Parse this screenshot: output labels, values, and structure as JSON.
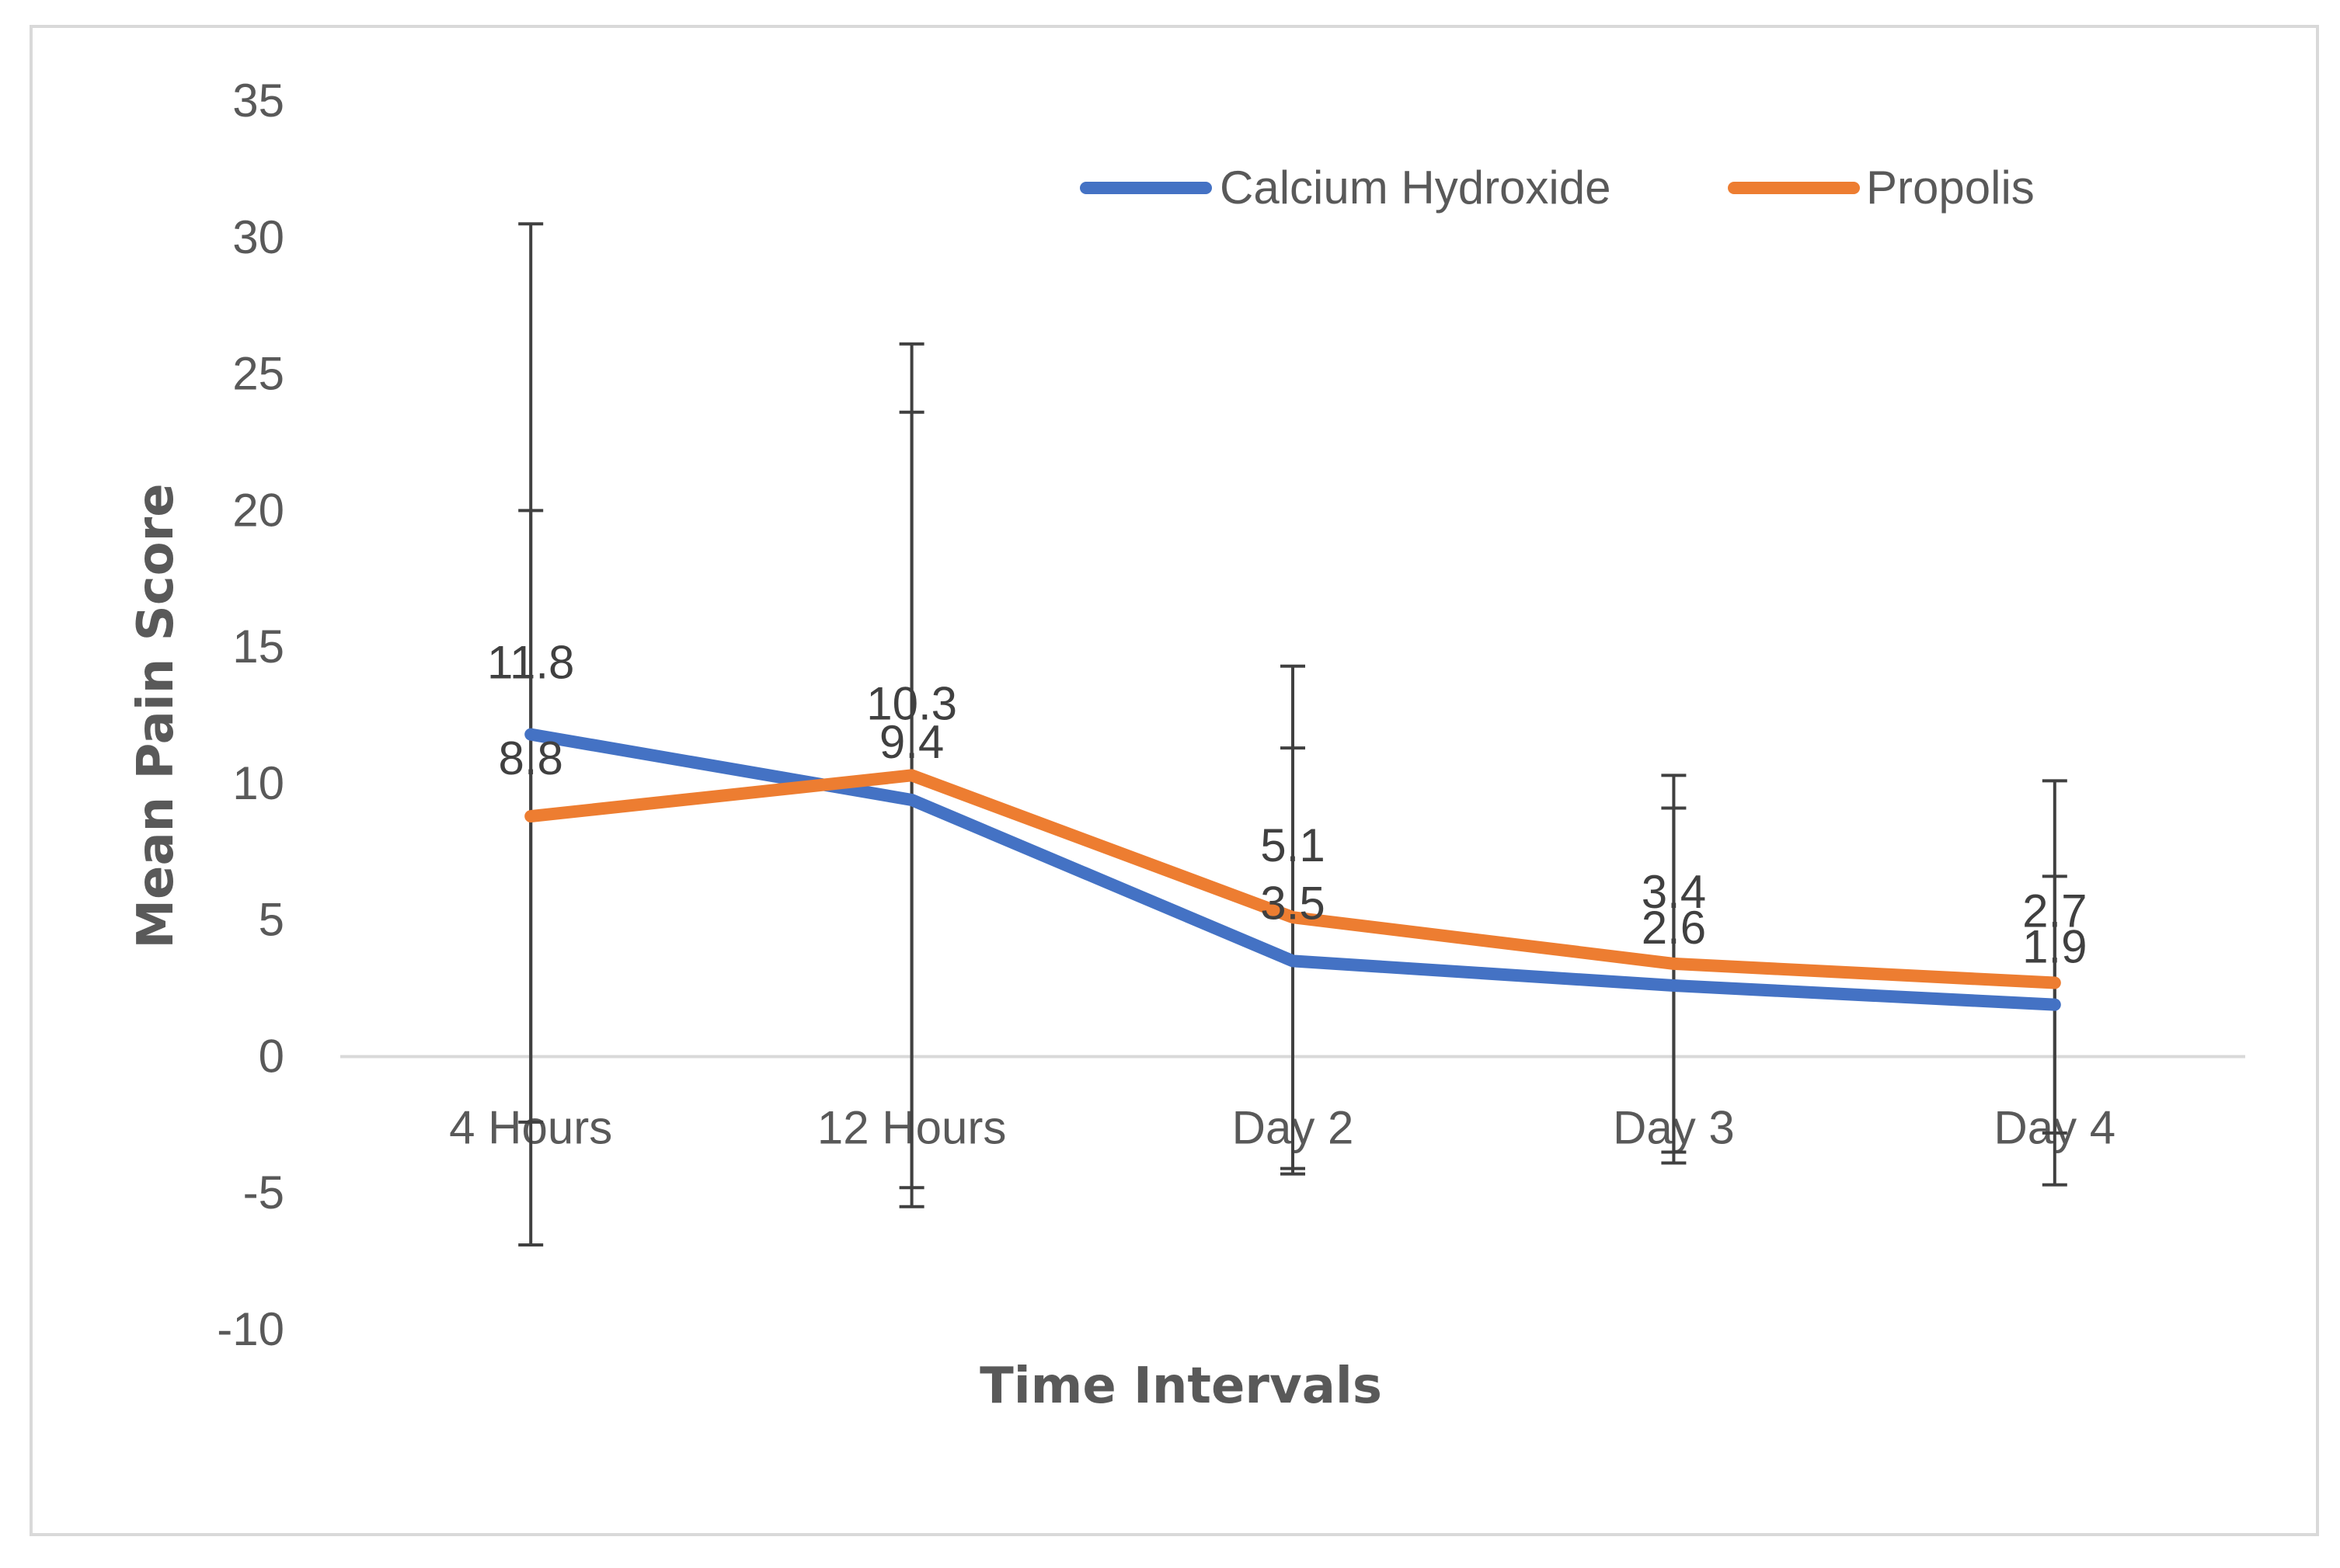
{
  "chart_data": {
    "type": "line",
    "title": "",
    "xlabel": "Time Intervals",
    "ylabel": "Mean Pain Score",
    "ylim": [
      -10,
      35
    ],
    "yticks": [
      "35",
      "30",
      "25",
      "20",
      "15",
      "10",
      "5",
      "0",
      "-5",
      "-10"
    ],
    "categories": [
      "4 Hours",
      "12 Hours",
      "Day 2",
      "Day 3",
      "Day 4"
    ],
    "legend_position": "top-right",
    "grid": false,
    "series": [
      {
        "name": "Calcium Hydroxide",
        "color": "#4472C4",
        "values": [
          11.8,
          9.4,
          3.5,
          2.6,
          1.9
        ],
        "labels": [
          "11.8",
          "9.4",
          "3.5",
          "2.6",
          "1.9"
        ],
        "error_plus": [
          18.7,
          14.2,
          7.8,
          6.5,
          4.7
        ],
        "error_minus": [
          18.7,
          14.2,
          7.8,
          6.5,
          4.7
        ]
      },
      {
        "name": "Propolis",
        "color": "#ED7D31",
        "values": [
          8.8,
          10.3,
          5.1,
          3.4,
          2.7
        ],
        "labels": [
          "8.8",
          "10.3",
          "5.1",
          "3.4",
          "2.7"
        ],
        "error_plus": [
          11.2,
          15.8,
          9.2,
          6.9,
          7.4
        ],
        "error_minus": [
          11.2,
          15.8,
          9.2,
          6.9,
          7.4
        ]
      }
    ]
  }
}
